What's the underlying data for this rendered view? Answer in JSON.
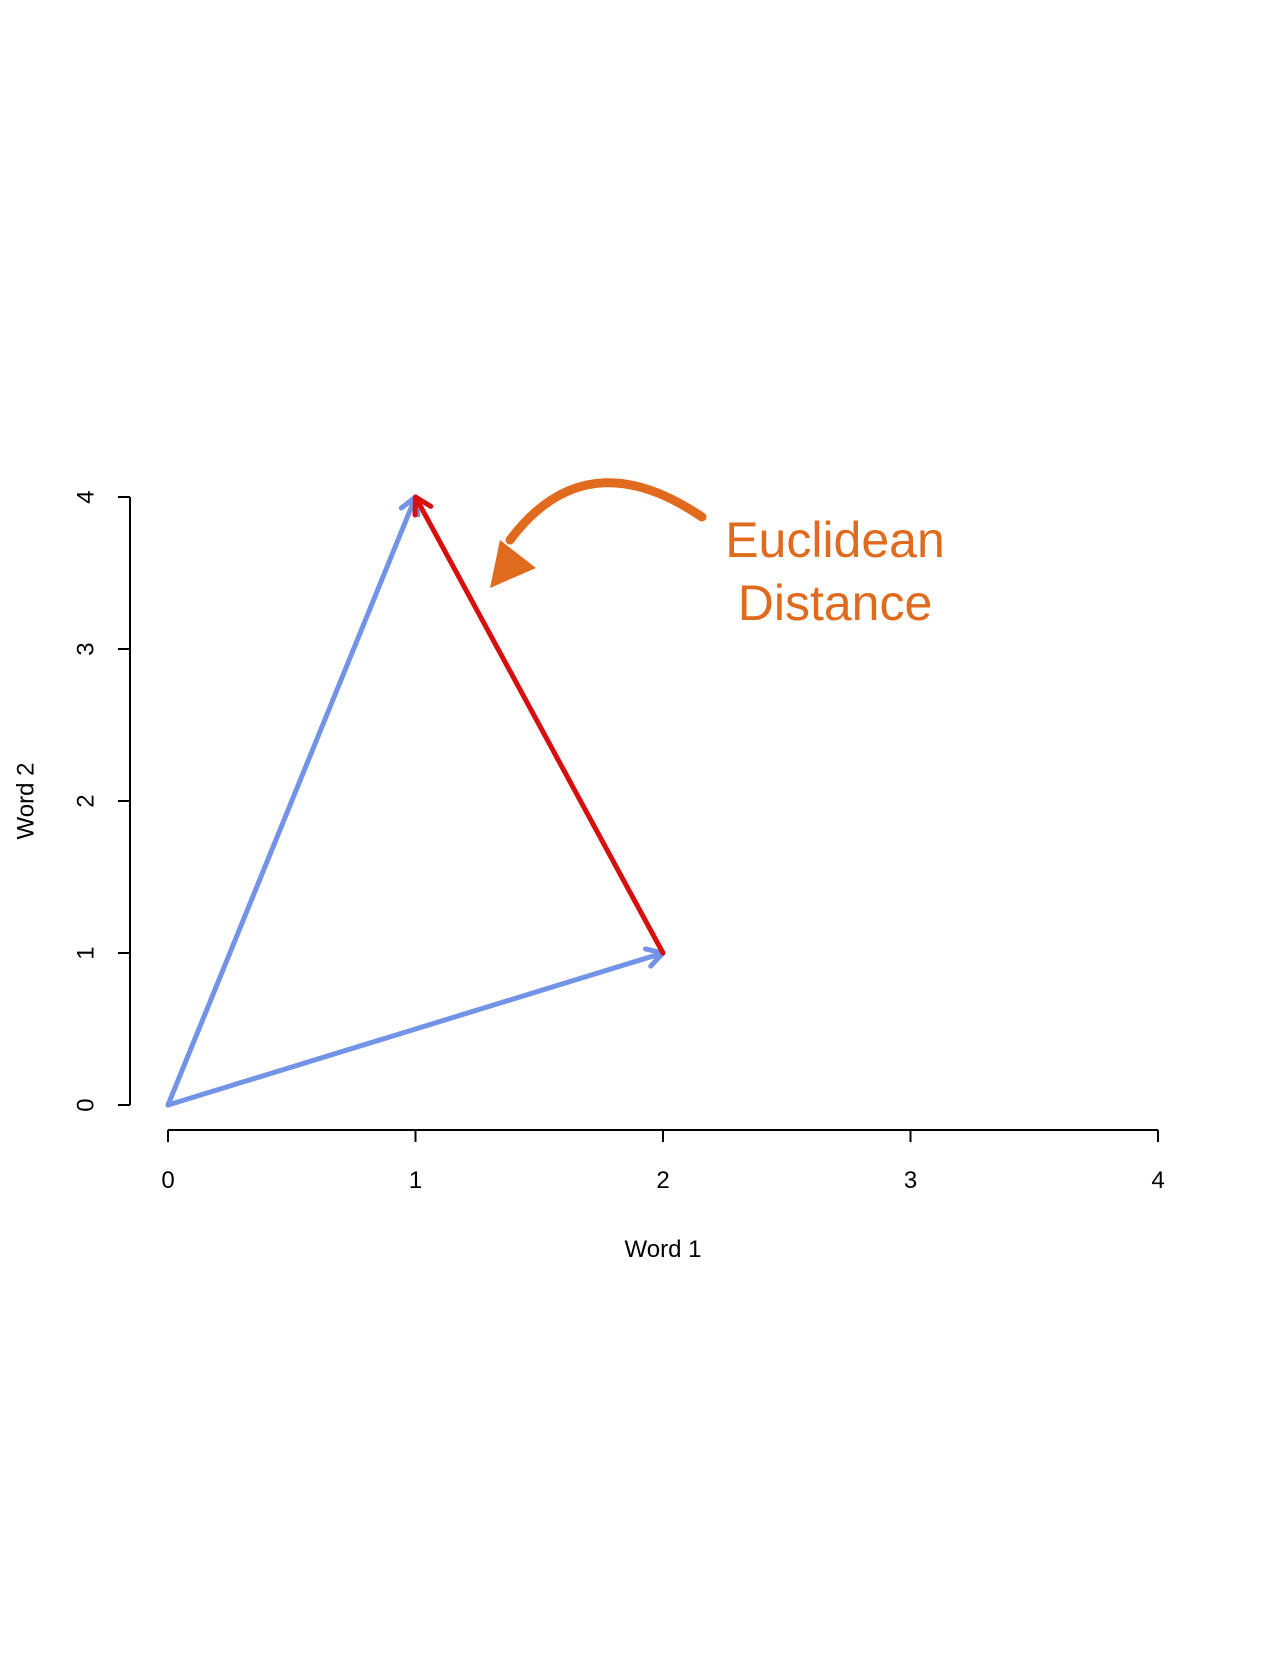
{
  "chart_data": {
    "type": "line",
    "xlabel": "Word 1",
    "ylabel": "Word 2",
    "xlim": [
      0,
      4
    ],
    "ylim": [
      0,
      4
    ],
    "x_ticks": [
      "0",
      "1",
      "2",
      "3",
      "4"
    ],
    "y_ticks": [
      "0",
      "1",
      "2",
      "3",
      "4"
    ],
    "grid": false,
    "vectors": [
      {
        "from": [
          0,
          0
        ],
        "to": [
          1,
          4
        ],
        "color": "#7393e8",
        "style": "arrow"
      },
      {
        "from": [
          0,
          0
        ],
        "to": [
          2,
          1
        ],
        "color": "#7393e8",
        "style": "arrow"
      },
      {
        "from": [
          2,
          1
        ],
        "to": [
          1,
          4
        ],
        "color": "#d80f0f",
        "style": "arrow"
      }
    ],
    "annotation": {
      "lines": [
        "Euclidean",
        "Distance"
      ],
      "color": "#e06b1e",
      "arrow_icon": "curved-arrow-icon"
    }
  }
}
